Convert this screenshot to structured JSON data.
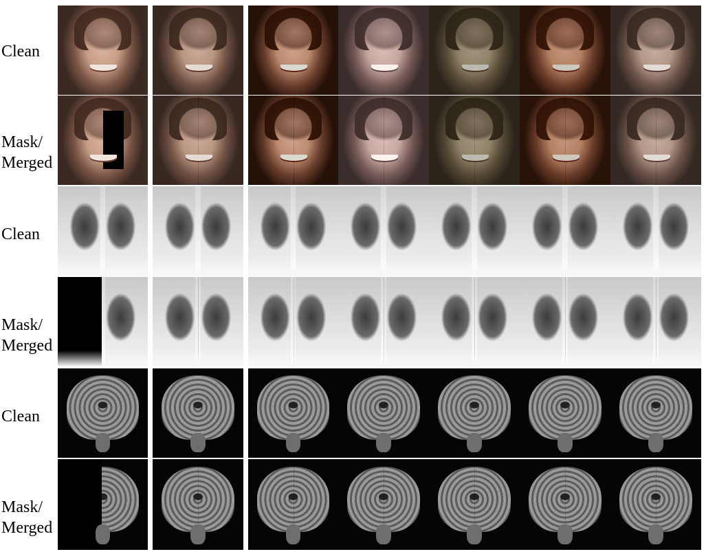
{
  "rows": [
    {
      "label_lines": [
        "Clean"
      ]
    },
    {
      "label_lines": [
        "Mask/",
        "Merged"
      ]
    },
    {
      "label_lines": [
        "Clean"
      ]
    },
    {
      "label_lines": [
        "Mask/",
        "Merged"
      ]
    },
    {
      "label_lines": [
        "Clean"
      ]
    },
    {
      "label_lines": [
        "Mask/",
        "Merged"
      ]
    }
  ]
}
